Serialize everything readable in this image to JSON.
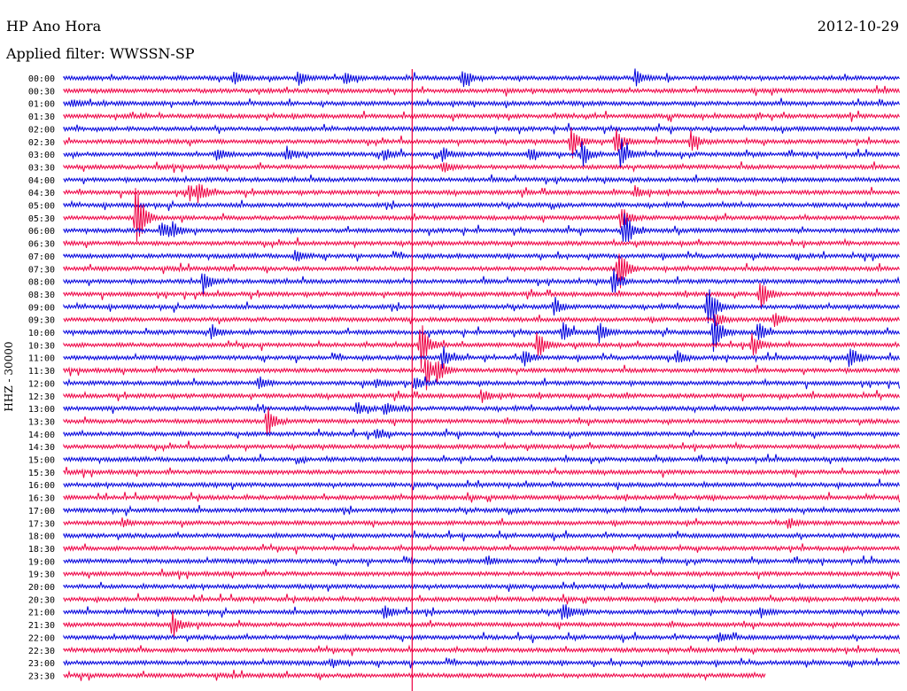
{
  "header": {
    "station": "HP Ano Hora",
    "date": "2012-10-29",
    "filter": "Applied filter: WWSSN-SP",
    "y_axis_label": "HHZ - 30000"
  },
  "colors": {
    "even_trace": "#0000dd",
    "odd_trace": "#ee0044",
    "marker": "#ee0044"
  },
  "chart_data": {
    "type": "line",
    "title": "HP Ano Hora",
    "subtitle": "Applied filter: WWSSN-SP",
    "date": "2012-10-29",
    "ylabel": "HHZ - 30000",
    "row_labels": [
      "00:00",
      "00:30",
      "01:00",
      "01:30",
      "02:00",
      "02:30",
      "03:00",
      "03:30",
      "04:00",
      "04:30",
      "05:00",
      "05:30",
      "06:00",
      "06:30",
      "07:00",
      "07:30",
      "08:00",
      "08:30",
      "09:00",
      "09:30",
      "10:00",
      "10:30",
      "11:00",
      "11:30",
      "12:00",
      "12:30",
      "13:00",
      "13:30",
      "14:00",
      "14:30",
      "15:00",
      "15:30",
      "16:00",
      "16:30",
      "17:00",
      "17:30",
      "18:00",
      "18:30",
      "19:00",
      "19:30",
      "20:00",
      "20:30",
      "21:00",
      "21:30",
      "22:00",
      "22:30",
      "23:00",
      "23:30"
    ],
    "trace_minutes": 30,
    "last_trace_fraction": 0.84,
    "marker_minute": 12.5,
    "events": [
      {
        "row": 0,
        "minute": 6.1,
        "amp": 1.0
      },
      {
        "row": 0,
        "minute": 8.4,
        "amp": 1.0
      },
      {
        "row": 0,
        "minute": 10.1,
        "amp": 0.9
      },
      {
        "row": 0,
        "minute": 14.3,
        "amp": 1.2
      },
      {
        "row": 0,
        "minute": 20.5,
        "amp": 1.1
      },
      {
        "row": 2,
        "minute": 0.3,
        "amp": 0.5
      },
      {
        "row": 5,
        "minute": 18.2,
        "amp": 2.2
      },
      {
        "row": 5,
        "minute": 19.8,
        "amp": 1.6
      },
      {
        "row": 5,
        "minute": 22.5,
        "amp": 1.2
      },
      {
        "row": 6,
        "minute": 5.5,
        "amp": 0.8
      },
      {
        "row": 6,
        "minute": 8.0,
        "amp": 0.8
      },
      {
        "row": 6,
        "minute": 11.5,
        "amp": 0.8
      },
      {
        "row": 6,
        "minute": 13.6,
        "amp": 0.9
      },
      {
        "row": 6,
        "minute": 16.7,
        "amp": 0.9
      },
      {
        "row": 6,
        "minute": 18.6,
        "amp": 1.5
      },
      {
        "row": 6,
        "minute": 20.0,
        "amp": 2.0
      },
      {
        "row": 7,
        "minute": 13.6,
        "amp": 0.9
      },
      {
        "row": 9,
        "minute": 4.5,
        "amp": 1.0
      },
      {
        "row": 9,
        "minute": 4.8,
        "amp": 1.4
      },
      {
        "row": 9,
        "minute": 20.5,
        "amp": 0.7
      },
      {
        "row": 11,
        "minute": 2.6,
        "amp": 5.0
      },
      {
        "row": 11,
        "minute": 20.0,
        "amp": 1.6
      },
      {
        "row": 12,
        "minute": 3.5,
        "amp": 1.1
      },
      {
        "row": 12,
        "minute": 3.9,
        "amp": 0.9
      },
      {
        "row": 12,
        "minute": 20.1,
        "amp": 3.0
      },
      {
        "row": 14,
        "minute": 8.3,
        "amp": 0.8
      },
      {
        "row": 15,
        "minute": 19.9,
        "amp": 3.0
      },
      {
        "row": 16,
        "minute": 5.0,
        "amp": 1.5
      },
      {
        "row": 16,
        "minute": 19.7,
        "amp": 1.8
      },
      {
        "row": 17,
        "minute": 25.0,
        "amp": 1.8
      },
      {
        "row": 18,
        "minute": 17.6,
        "amp": 1.0
      },
      {
        "row": 18,
        "minute": 23.1,
        "amp": 3.5
      },
      {
        "row": 19,
        "minute": 23.4,
        "amp": 1.0
      },
      {
        "row": 19,
        "minute": 25.5,
        "amp": 1.2
      },
      {
        "row": 20,
        "minute": 5.3,
        "amp": 1.0
      },
      {
        "row": 20,
        "minute": 17.9,
        "amp": 1.1
      },
      {
        "row": 20,
        "minute": 19.2,
        "amp": 1.4
      },
      {
        "row": 20,
        "minute": 23.3,
        "amp": 2.6
      },
      {
        "row": 20,
        "minute": 24.9,
        "amp": 1.3
      },
      {
        "row": 21,
        "minute": 12.8,
        "amp": 3.0
      },
      {
        "row": 21,
        "minute": 17.0,
        "amp": 1.9
      },
      {
        "row": 21,
        "minute": 24.7,
        "amp": 1.5
      },
      {
        "row": 22,
        "minute": 13.6,
        "amp": 1.4
      },
      {
        "row": 22,
        "minute": 16.5,
        "amp": 1.1
      },
      {
        "row": 22,
        "minute": 28.2,
        "amp": 1.6
      },
      {
        "row": 22,
        "minute": 22.0,
        "amp": 0.9
      },
      {
        "row": 23,
        "minute": 13.0,
        "amp": 2.5
      },
      {
        "row": 23,
        "minute": 13.4,
        "amp": 1.5
      },
      {
        "row": 24,
        "minute": 7.0,
        "amp": 0.8
      },
      {
        "row": 24,
        "minute": 11.2,
        "amp": 0.6
      },
      {
        "row": 24,
        "minute": 12.6,
        "amp": 1.0
      },
      {
        "row": 25,
        "minute": 15.0,
        "amp": 0.8
      },
      {
        "row": 26,
        "minute": 10.5,
        "amp": 0.9
      },
      {
        "row": 26,
        "minute": 11.5,
        "amp": 0.8
      },
      {
        "row": 27,
        "minute": 7.3,
        "amp": 2.0
      },
      {
        "row": 28,
        "minute": 11.2,
        "amp": 0.6
      },
      {
        "row": 35,
        "minute": 2.1,
        "amp": 0.6
      },
      {
        "row": 35,
        "minute": 26.0,
        "amp": 0.7
      },
      {
        "row": 38,
        "minute": 15.2,
        "amp": 0.6
      },
      {
        "row": 42,
        "minute": 11.5,
        "amp": 1.1
      },
      {
        "row": 42,
        "minute": 17.9,
        "amp": 1.3
      },
      {
        "row": 42,
        "minute": 25.0,
        "amp": 0.6
      },
      {
        "row": 43,
        "minute": 3.9,
        "amp": 1.8
      },
      {
        "row": 44,
        "minute": 23.5,
        "amp": 0.6
      },
      {
        "row": 46,
        "minute": 9.6,
        "amp": 0.6
      }
    ]
  }
}
